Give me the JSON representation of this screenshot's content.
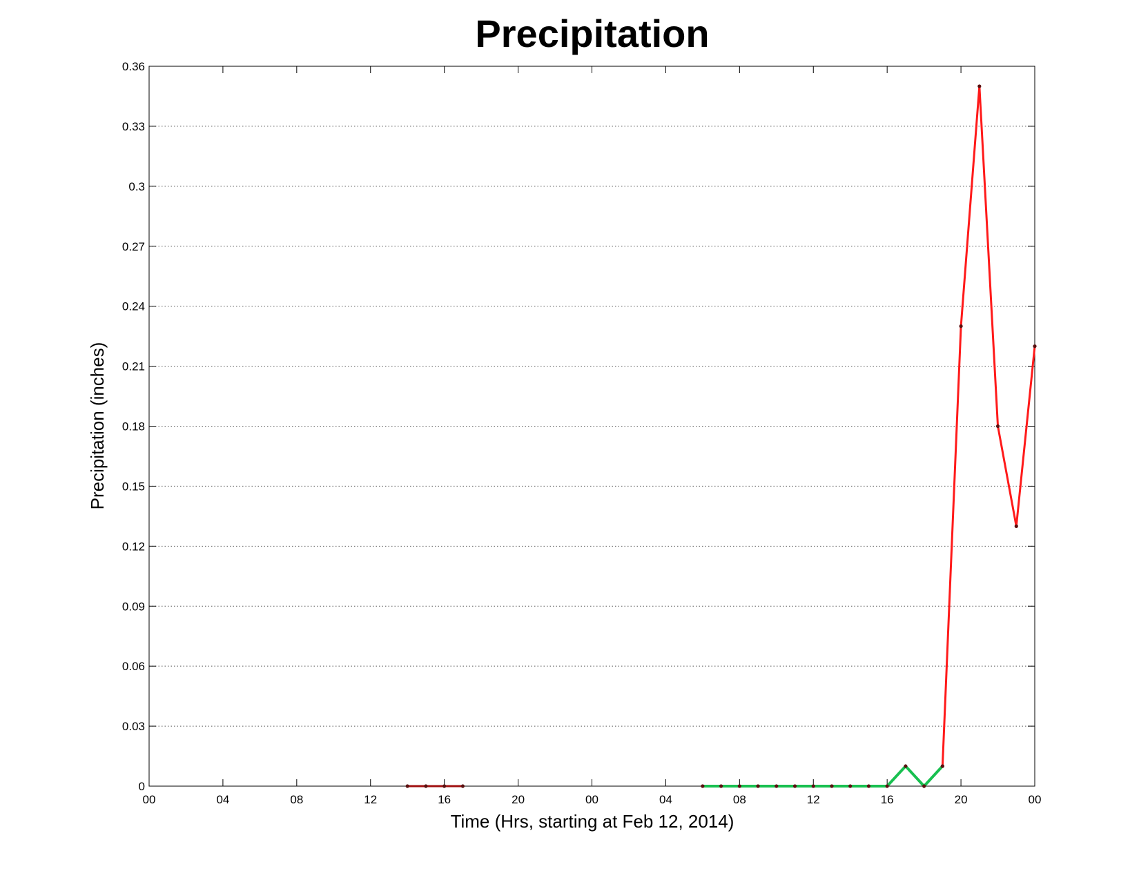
{
  "chart_data": {
    "type": "line",
    "title": "Precipitation",
    "xlabel": "Time (Hrs, starting at Feb 12, 2014)",
    "ylabel": "Precipitation (inches)",
    "ylim": [
      0,
      0.36
    ],
    "xlim": [
      0,
      48
    ],
    "grid": "y-dotted",
    "x_ticks": [
      0,
      4,
      8,
      12,
      16,
      20,
      24,
      28,
      32,
      36,
      40,
      44,
      48
    ],
    "x_tick_labels": [
      "00",
      "04",
      "08",
      "12",
      "16",
      "20",
      "00",
      "04",
      "08",
      "12",
      "16",
      "20",
      "00"
    ],
    "y_ticks": [
      0,
      0.03,
      0.06,
      0.09,
      0.12,
      0.15,
      0.18,
      0.21,
      0.24,
      0.27,
      0.3,
      0.33,
      0.36
    ],
    "y_tick_labels": [
      "0",
      "0.03",
      "0.06",
      "0.09",
      "0.12",
      "0.15",
      "0.18",
      "0.21",
      "0.24",
      "0.27",
      "0.3",
      "0.33",
      "0.36"
    ],
    "series": [
      {
        "color": "#a01010",
        "x": [
          14,
          15,
          16,
          17
        ],
        "y": [
          0,
          0,
          0,
          0
        ]
      },
      {
        "color": "#18c050",
        "x": [
          30,
          31,
          32,
          33,
          34,
          35,
          36,
          37,
          38,
          39,
          40,
          41,
          42,
          43
        ],
        "y": [
          0,
          0,
          0,
          0,
          0,
          0,
          0,
          0,
          0,
          0,
          0,
          0.01,
          0,
          0.01
        ]
      },
      {
        "color": "#ff1a1a",
        "x": [
          43,
          44,
          45,
          46,
          47,
          48
        ],
        "y": [
          0.01,
          0.23,
          0.35,
          0.18,
          0.13,
          0.22
        ]
      }
    ]
  }
}
